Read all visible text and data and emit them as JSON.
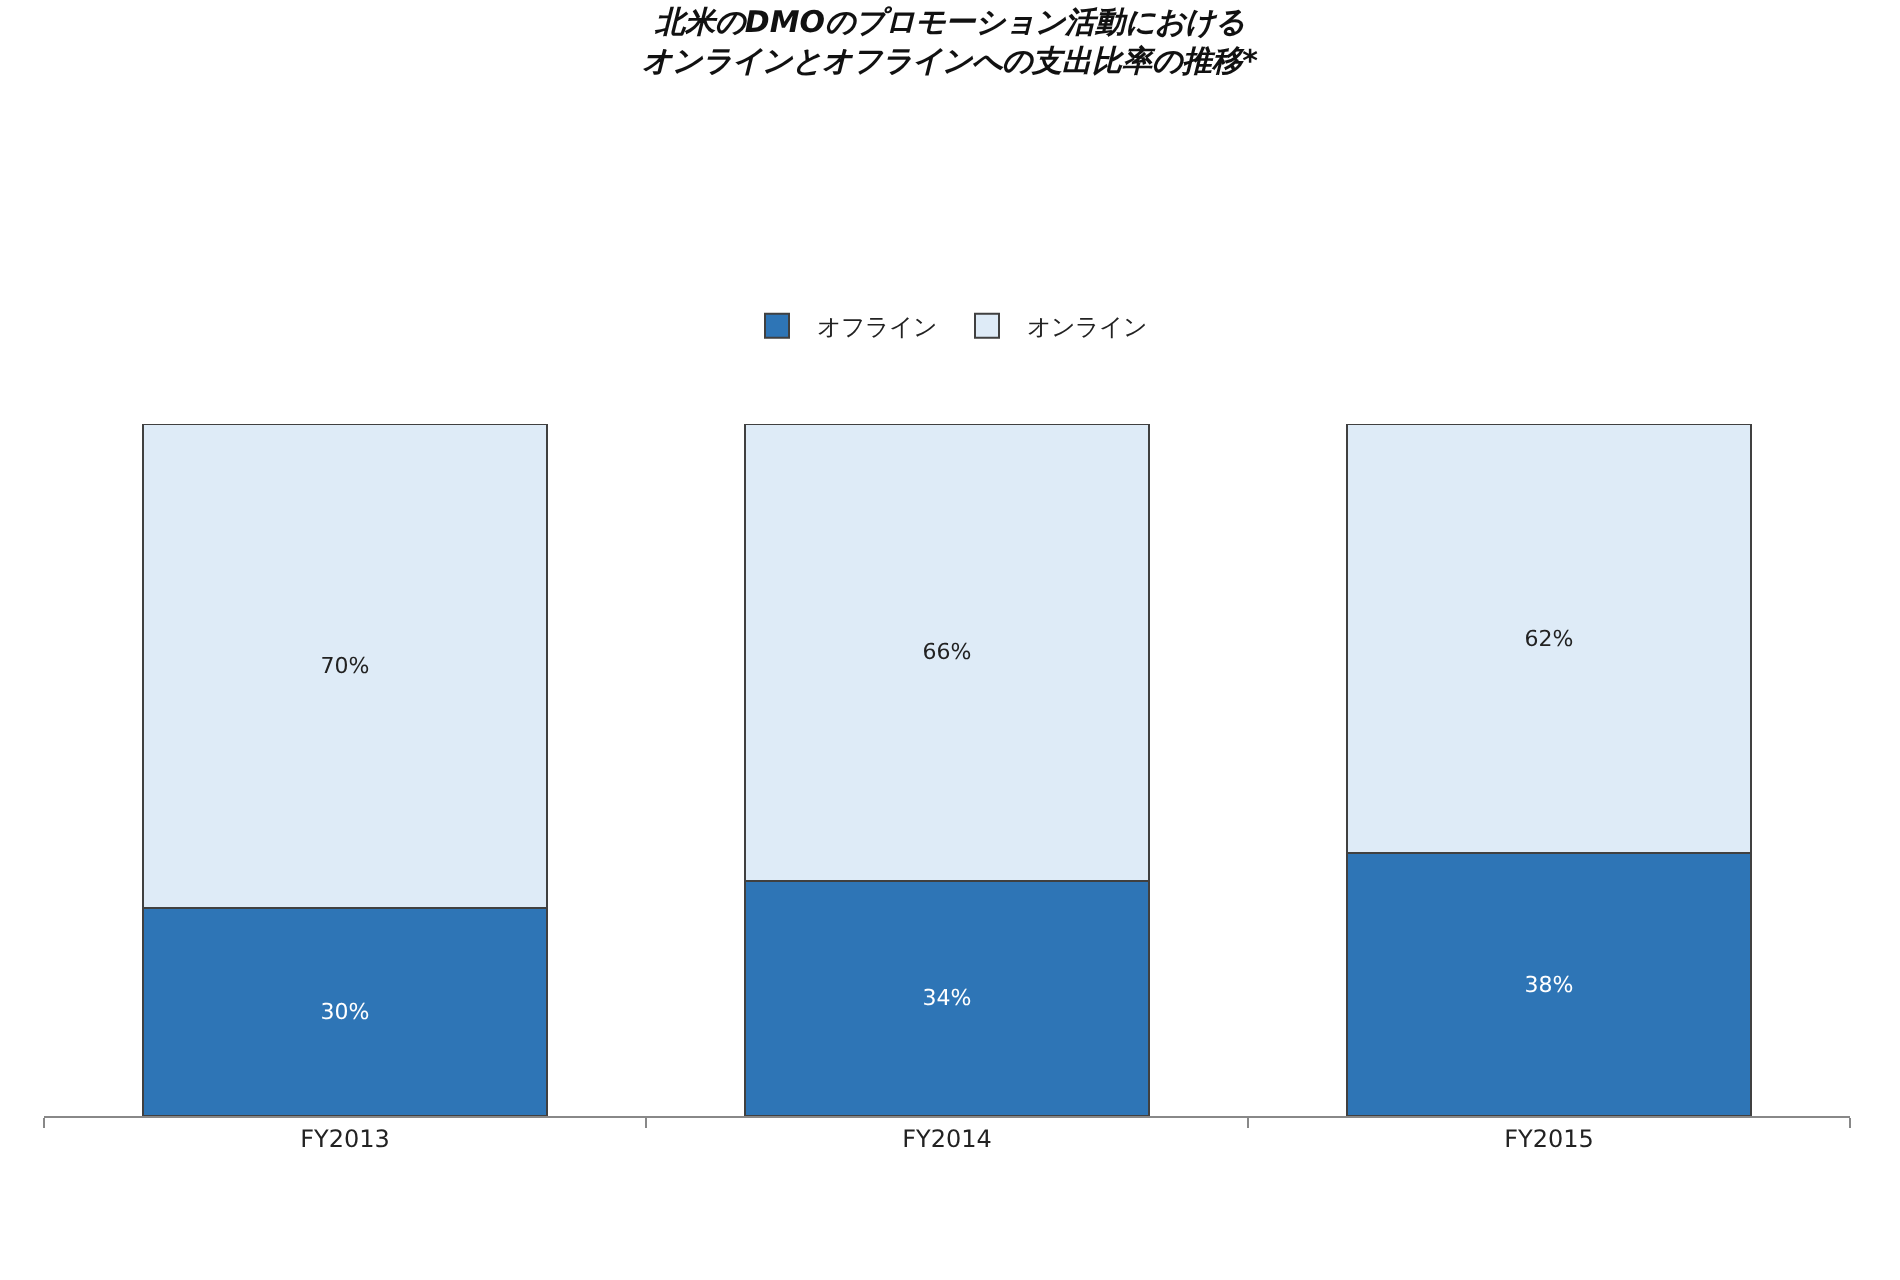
{
  "chart_data": {
    "type": "bar",
    "title": "北米のDMOのプロモーション活動における",
    "subtitle": "オンラインとオフラインへの支出比率の推移*",
    "categories": [
      "FY2013",
      "FY2014",
      "FY2015"
    ],
    "stacked": true,
    "legend": "top",
    "series": [
      {
        "name": "オフライン",
        "color": "#2e75b6",
        "values": [
          30,
          34,
          38
        ],
        "value_labels": [
          "30%",
          "34%",
          "38%"
        ]
      },
      {
        "name": "オンライン",
        "color": "#deebf7",
        "values": [
          70,
          66,
          62
        ],
        "value_labels": [
          "70%",
          "66%",
          "62%"
        ]
      }
    ]
  }
}
